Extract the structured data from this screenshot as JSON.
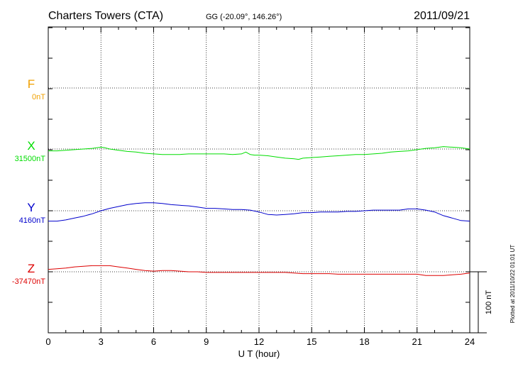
{
  "header": {
    "station": "Charters Towers (CTA)",
    "coords": "GG (-20.09°, 146.26°)",
    "date": "2011/09/21"
  },
  "footer": {
    "plotted": "Plotted at 2011/10/22 01:01  UT"
  },
  "chart_data": {
    "type": "line",
    "title": "Charters Towers (CTA)",
    "xlabel": "U T (hour)",
    "xlim": [
      0,
      24
    ],
    "x_ticks": [
      "0",
      "3",
      "6",
      "9",
      "12",
      "15",
      "18",
      "21",
      "24"
    ],
    "grid": true,
    "scale_bar": {
      "label": "100 nT",
      "nT": 100
    },
    "colors": {
      "F": "#f0a000",
      "X": "#00dd00",
      "Y": "#0000cc",
      "Z": "#dd0000"
    },
    "series": [
      {
        "name": "F",
        "baseline_label": "0nT",
        "x": [],
        "values": []
      },
      {
        "name": "X",
        "baseline_label": "31500nT",
        "x": [
          0,
          0.5,
          1,
          1.5,
          2,
          2.5,
          3,
          3.25,
          3.5,
          4,
          4.5,
          5,
          5.5,
          6,
          6.5,
          7,
          7.5,
          8,
          8.5,
          9,
          9.5,
          10,
          10.5,
          11,
          11.25,
          11.5,
          11.75,
          12,
          12.5,
          13,
          13.5,
          14,
          14.25,
          14.5,
          15,
          15.5,
          16,
          16.5,
          17,
          17.5,
          18,
          18.5,
          19,
          19.5,
          20,
          20.5,
          21,
          21.5,
          22,
          22.5,
          23,
          23.5,
          24
        ],
        "values": [
          -3,
          -3,
          -2,
          -1,
          0,
          1,
          3,
          2,
          0,
          -2,
          -4,
          -5,
          -7,
          -8,
          -9,
          -9,
          -9,
          -8,
          -8,
          -8,
          -8,
          -8,
          -9,
          -8,
          -5,
          -9,
          -10,
          -10,
          -11,
          -13,
          -15,
          -16,
          -17,
          -15,
          -14,
          -13,
          -12,
          -11,
          -10,
          -9,
          -9,
          -8,
          -7,
          -5,
          -4,
          -3,
          -1,
          1,
          2,
          4,
          3,
          2,
          0
        ]
      },
      {
        "name": "Y",
        "baseline_label": "4160nT",
        "x": [
          0,
          0.5,
          1,
          1.5,
          2,
          2.5,
          3,
          3.5,
          4,
          4.5,
          5,
          5.5,
          6,
          6.5,
          7,
          7.5,
          8,
          8.5,
          9,
          9.5,
          10,
          10.5,
          11,
          11.5,
          12,
          12.5,
          13,
          13.5,
          14,
          14.5,
          15,
          15.5,
          16,
          16.5,
          17,
          17.5,
          18,
          18.5,
          19,
          19.5,
          20,
          20.5,
          21,
          21.5,
          22,
          22.5,
          23,
          23.5,
          24
        ],
        "values": [
          -17,
          -17,
          -15,
          -12,
          -9,
          -5,
          0,
          4,
          7,
          10,
          12,
          13,
          13,
          12,
          10,
          9,
          8,
          6,
          4,
          4,
          3,
          2,
          2,
          1,
          -2,
          -6,
          -7,
          -6,
          -5,
          -3,
          -3,
          -2,
          -2,
          -2,
          -1,
          -1,
          0,
          1,
          1,
          1,
          1,
          3,
          3,
          1,
          -2,
          -8,
          -12,
          -16,
          -17
        ]
      },
      {
        "name": "Z",
        "baseline_label": "-37470nT",
        "x": [
          0,
          0.5,
          1,
          1.5,
          2,
          2.5,
          3,
          3.5,
          4,
          4.5,
          5,
          5.5,
          6,
          6.5,
          7,
          7.5,
          8,
          8.5,
          9,
          9.5,
          10,
          10.5,
          11,
          11.5,
          12,
          12.5,
          13,
          13.5,
          14,
          14.5,
          15,
          15.5,
          16,
          16.5,
          17,
          17.5,
          18,
          18.5,
          19,
          19.5,
          20,
          20.5,
          21,
          21.5,
          22,
          22.5,
          23,
          23.5,
          24
        ],
        "values": [
          4,
          5,
          6,
          8,
          9,
          10,
          10,
          10,
          8,
          6,
          4,
          2,
          1,
          2,
          2,
          1,
          0,
          0,
          -1,
          -1,
          -1,
          -1,
          -1,
          -1,
          -1,
          -1,
          -1,
          -1,
          -2,
          -3,
          -3,
          -3,
          -3,
          -4,
          -4,
          -4,
          -4,
          -4,
          -4,
          -4,
          -4,
          -4,
          -4,
          -6,
          -6,
          -6,
          -5,
          -4,
          -2
        ]
      }
    ]
  }
}
